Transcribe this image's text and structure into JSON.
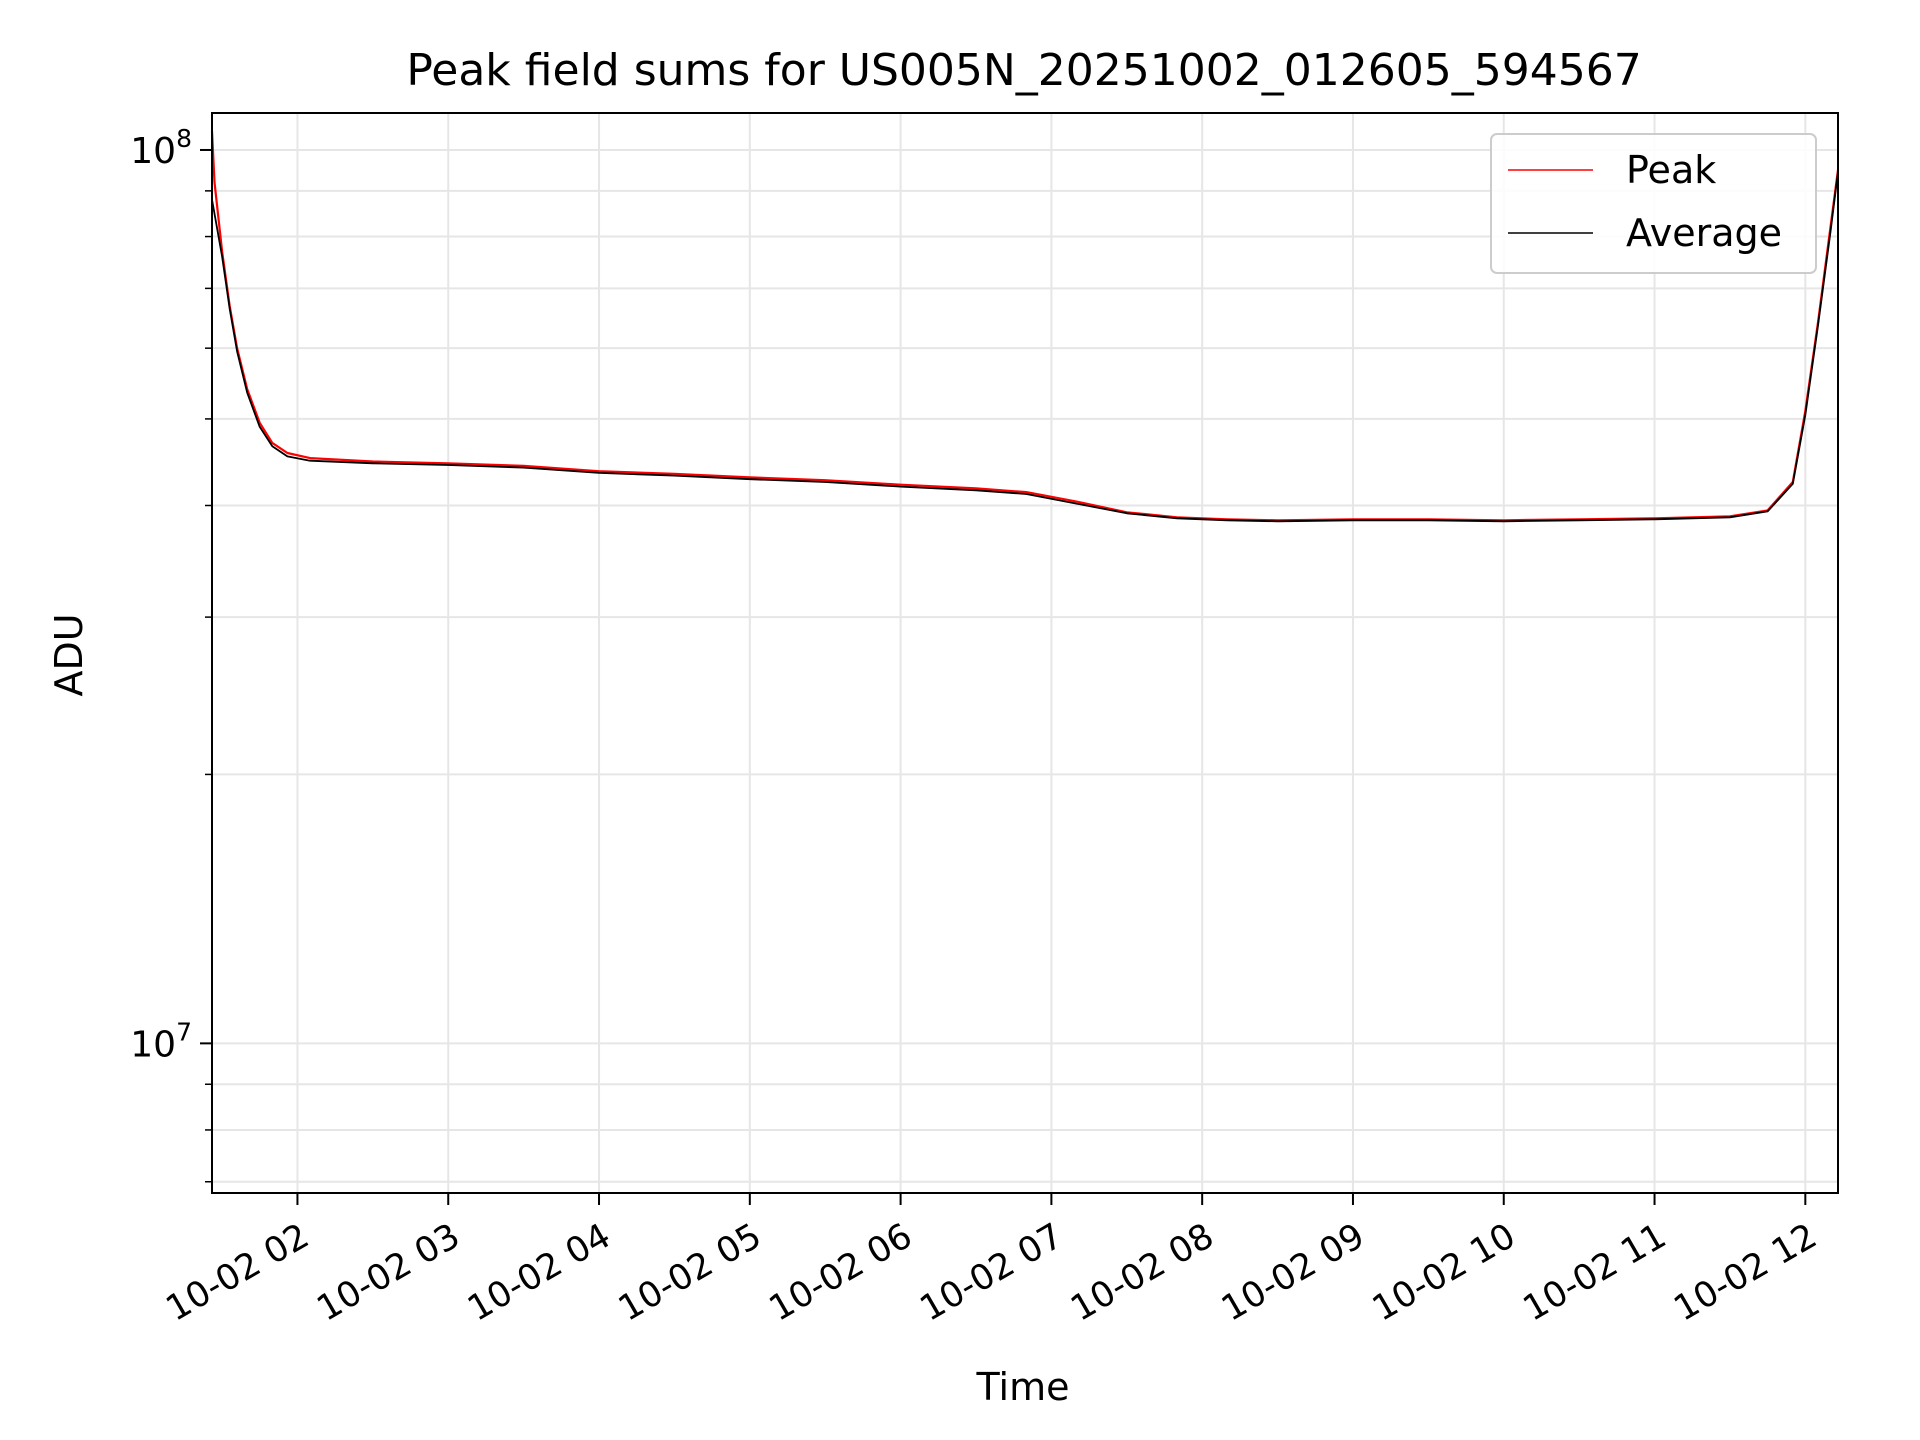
{
  "chart_data": {
    "type": "line",
    "title": "Peak field sums for US005N_20251002_012605_594567",
    "xlabel": "Time",
    "ylabel": "ADU",
    "yscale": "log",
    "ylim": [
      6800000,
      110000000
    ],
    "xlim": [
      "2025-10-02 01:26",
      "2025-10-02 12:13"
    ],
    "x_ticks": [
      {
        "x": "2025-10-02 02:00",
        "label": "10-02 02"
      },
      {
        "x": "2025-10-02 03:00",
        "label": "10-02 03"
      },
      {
        "x": "2025-10-02 04:00",
        "label": "10-02 04"
      },
      {
        "x": "2025-10-02 05:00",
        "label": "10-02 05"
      },
      {
        "x": "2025-10-02 06:00",
        "label": "10-02 06"
      },
      {
        "x": "2025-10-02 07:00",
        "label": "10-02 07"
      },
      {
        "x": "2025-10-02 08:00",
        "label": "10-02 08"
      },
      {
        "x": "2025-10-02 09:00",
        "label": "10-02 09"
      },
      {
        "x": "2025-10-02 10:00",
        "label": "10-02 10"
      },
      {
        "x": "2025-10-02 11:00",
        "label": "10-02 11"
      },
      {
        "x": "2025-10-02 12:00",
        "label": "10-02 12"
      }
    ],
    "y_ticks": [
      {
        "value": 10000000,
        "base": "10",
        "exp": "7"
      },
      {
        "value": 100000000,
        "base": "10",
        "exp": "8"
      }
    ],
    "y_minor_ticks": [
      7000000,
      8000000,
      9000000,
      20000000,
      30000000,
      40000000,
      50000000,
      60000000,
      70000000,
      80000000,
      90000000
    ],
    "grid": true,
    "legend": {
      "position": "top-right"
    },
    "series": [
      {
        "name": "Peak",
        "color": "#ff0000",
        "x": [
          "2025-10-02 01:26",
          "2025-10-02 01:27",
          "2025-10-02 01:30",
          "2025-10-02 01:33",
          "2025-10-02 01:36",
          "2025-10-02 01:40",
          "2025-10-02 01:45",
          "2025-10-02 01:50",
          "2025-10-02 01:56",
          "2025-10-02 02:05",
          "2025-10-02 02:30",
          "2025-10-02 03:00",
          "2025-10-02 03:30",
          "2025-10-02 04:00",
          "2025-10-02 04:30",
          "2025-10-02 05:00",
          "2025-10-02 05:30",
          "2025-10-02 06:00",
          "2025-10-02 06:30",
          "2025-10-02 06:50",
          "2025-10-02 07:10",
          "2025-10-02 07:30",
          "2025-10-02 07:50",
          "2025-10-02 08:10",
          "2025-10-02 08:30",
          "2025-10-02 09:00",
          "2025-10-02 09:30",
          "2025-10-02 10:00",
          "2025-10-02 10:30",
          "2025-10-02 11:00",
          "2025-10-02 11:30",
          "2025-10-02 11:45",
          "2025-10-02 11:55",
          "2025-10-02 12:00",
          "2025-10-02 12:05",
          "2025-10-02 12:10",
          "2025-10-02 12:13"
        ],
        "values": [
          105000000,
          92000000,
          77000000,
          67000000,
          60000000,
          54000000,
          49500000,
          47000000,
          45800000,
          45200000,
          44800000,
          44600000,
          44300000,
          43700000,
          43400000,
          43000000,
          42700000,
          42200000,
          41800000,
          41400000,
          40400000,
          39300000,
          38800000,
          38600000,
          38500000,
          38600000,
          38600000,
          38500000,
          38600000,
          38700000,
          38900000,
          39500000,
          42500000,
          51000000,
          64000000,
          82000000,
          95000000
        ]
      },
      {
        "name": "Average",
        "color": "#000000",
        "x": [
          "2025-10-02 01:26",
          "2025-10-02 01:30",
          "2025-10-02 01:33",
          "2025-10-02 01:36",
          "2025-10-02 01:40",
          "2025-10-02 01:45",
          "2025-10-02 01:50",
          "2025-10-02 01:56",
          "2025-10-02 02:05",
          "2025-10-02 02:30",
          "2025-10-02 03:00",
          "2025-10-02 03:30",
          "2025-10-02 04:00",
          "2025-10-02 04:30",
          "2025-10-02 05:00",
          "2025-10-02 05:30",
          "2025-10-02 06:00",
          "2025-10-02 06:30",
          "2025-10-02 06:50",
          "2025-10-02 07:10",
          "2025-10-02 07:30",
          "2025-10-02 07:50",
          "2025-10-02 08:10",
          "2025-10-02 08:30",
          "2025-10-02 09:00",
          "2025-10-02 09:30",
          "2025-10-02 10:00",
          "2025-10-02 10:30",
          "2025-10-02 11:00",
          "2025-10-02 11:30",
          "2025-10-02 11:45",
          "2025-10-02 11:55",
          "2025-10-02 12:00",
          "2025-10-02 12:05",
          "2025-10-02 12:10",
          "2025-10-02 12:13"
        ],
        "values": [
          88000000,
          76000000,
          66500000,
          59500000,
          53500000,
          49000000,
          46600000,
          45400000,
          44900000,
          44600000,
          44400000,
          44100000,
          43500000,
          43200000,
          42800000,
          42500000,
          42000000,
          41600000,
          41200000,
          40200000,
          39200000,
          38700000,
          38500000,
          38400000,
          38500000,
          38500000,
          38400000,
          38500000,
          38600000,
          38800000,
          39400000,
          42300000,
          50500000,
          63500000,
          81000000,
          94500000
        ]
      }
    ]
  }
}
